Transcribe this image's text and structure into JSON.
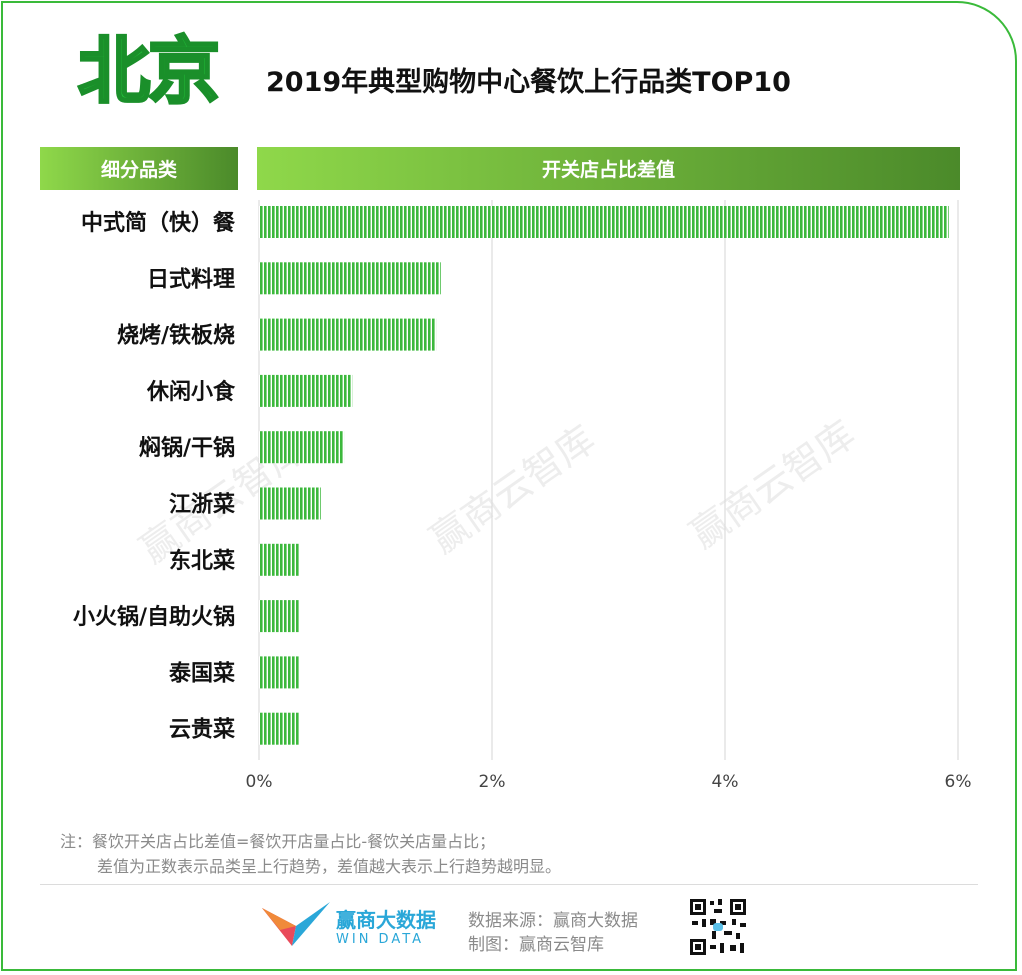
{
  "city": "北京",
  "title": "2019年典型购物中心餐饮上行品类TOP10",
  "header": {
    "left": "细分品类",
    "right": "开关店占比差值"
  },
  "chart_data": {
    "type": "bar",
    "orientation": "horizontal",
    "categories": [
      "中式简（快）餐",
      "日式料理",
      "烧烤/铁板烧",
      "休闲小食",
      "焖锅/干锅",
      "江浙菜",
      "东北菜",
      "小火锅/自助火锅",
      "泰国菜",
      "云贵菜"
    ],
    "values": [
      5.92,
      1.56,
      1.52,
      0.8,
      0.73,
      0.53,
      0.35,
      0.35,
      0.35,
      0.35
    ],
    "xlim": [
      0,
      6
    ],
    "xticks": [
      "0%",
      "2%",
      "4%",
      "6%"
    ],
    "xtick_values": [
      0,
      2,
      4,
      6
    ],
    "grid": true,
    "bar_color": "#3cb83c"
  },
  "notes": {
    "line1": "注：餐饮开关店占比差值=餐饮开店量占比-餐饮关店量占比；",
    "line2": "差值为正数表示品类呈上行趋势，差值越大表示上行趋势越明显。"
  },
  "watermark": "赢商云智库",
  "footer": {
    "brand_cn": "赢商大数据",
    "brand_en": "WIN DATA",
    "source": "数据来源：赢商大数据",
    "made_by": "制图：赢商云智库"
  }
}
